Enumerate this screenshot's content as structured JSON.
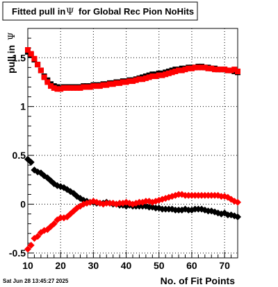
{
  "chart_data": {
    "type": "scatter",
    "title_prefix": "Fitted pull in",
    "title_symbol": "Ψ",
    "title_suffix": "for Global Rec Pion NoHits",
    "xlabel": "No. of Fit Points",
    "ylabel_prefix": "pull in",
    "ylabel_symbol": "Ψ",
    "timestamp": "Sat Jun 28 13:45:27 2025",
    "xlim": [
      10,
      74
    ],
    "ylim": [
      -0.55,
      1.8
    ],
    "grid": true,
    "x_ticks": [
      10,
      20,
      30,
      40,
      50,
      60,
      70
    ],
    "x_tick_labels": [
      "10",
      "20",
      "30",
      "40",
      "50",
      "60",
      "70"
    ],
    "y_ticks": [
      -0.5,
      0,
      0.5,
      1,
      1.5
    ],
    "y_tick_labels": [
      "-0.5",
      "0",
      "0.5",
      "1",
      "1.5"
    ],
    "series": [
      {
        "color": "#000000",
        "marker": "square",
        "role": "upper",
        "x": [
          10,
          11,
          12,
          13,
          14,
          15,
          16,
          17,
          18,
          19,
          20,
          21,
          22,
          23,
          24,
          25,
          26,
          27,
          28,
          29,
          30,
          31,
          32,
          33,
          34,
          35,
          36,
          37,
          38,
          39,
          40,
          41,
          42,
          43,
          44,
          45,
          46,
          47,
          48,
          49,
          50,
          51,
          52,
          53,
          54,
          55,
          56,
          57,
          58,
          59,
          60,
          61,
          62,
          63,
          64,
          65,
          66,
          67,
          68,
          69,
          70,
          71,
          72,
          73,
          74
        ],
        "y": [
          1.56,
          1.53,
          1.48,
          1.43,
          1.37,
          1.31,
          1.27,
          1.23,
          1.21,
          1.2,
          1.19,
          1.2,
          1.2,
          1.2,
          1.2,
          1.2,
          1.2,
          1.21,
          1.21,
          1.21,
          1.22,
          1.22,
          1.22,
          1.23,
          1.23,
          1.24,
          1.24,
          1.25,
          1.25,
          1.26,
          1.26,
          1.27,
          1.27,
          1.28,
          1.29,
          1.3,
          1.31,
          1.32,
          1.33,
          1.33,
          1.34,
          1.34,
          1.35,
          1.36,
          1.37,
          1.38,
          1.38,
          1.39,
          1.39,
          1.4,
          1.4,
          1.4,
          1.41,
          1.41,
          1.4,
          1.4,
          1.39,
          1.39,
          1.38,
          1.38,
          1.38,
          1.37,
          1.37,
          1.36,
          1.35
        ]
      },
      {
        "color": "#ff0000",
        "marker": "square",
        "role": "upper",
        "x": [
          10,
          11,
          12,
          13,
          14,
          15,
          16,
          17,
          18,
          19,
          20,
          21,
          22,
          23,
          24,
          25,
          26,
          27,
          28,
          29,
          30,
          31,
          32,
          33,
          34,
          35,
          36,
          37,
          38,
          39,
          40,
          41,
          42,
          43,
          44,
          45,
          46,
          47,
          48,
          49,
          50,
          51,
          52,
          53,
          54,
          55,
          56,
          57,
          58,
          59,
          60,
          61,
          62,
          63,
          64,
          65,
          66,
          67,
          68,
          69,
          70,
          71,
          72,
          73,
          74
        ],
        "y": [
          1.58,
          1.54,
          1.49,
          1.43,
          1.37,
          1.3,
          1.25,
          1.21,
          1.19,
          1.18,
          1.18,
          1.19,
          1.19,
          1.19,
          1.19,
          1.19,
          1.19,
          1.2,
          1.2,
          1.2,
          1.21,
          1.21,
          1.21,
          1.22,
          1.22,
          1.23,
          1.23,
          1.24,
          1.24,
          1.25,
          1.25,
          1.26,
          1.26,
          1.27,
          1.28,
          1.28,
          1.29,
          1.3,
          1.31,
          1.31,
          1.32,
          1.32,
          1.33,
          1.34,
          1.35,
          1.36,
          1.37,
          1.37,
          1.38,
          1.39,
          1.39,
          1.4,
          1.4,
          1.4,
          1.4,
          1.39,
          1.39,
          1.38,
          1.38,
          1.38,
          1.38,
          1.37,
          1.37,
          1.38,
          1.36
        ]
      },
      {
        "color": "#000000",
        "marker": "diamond",
        "role": "lower",
        "x": [
          10,
          11,
          12,
          13,
          14,
          15,
          16,
          17,
          18,
          19,
          20,
          21,
          22,
          23,
          24,
          25,
          26,
          27,
          28,
          29,
          30,
          31,
          32,
          33,
          34,
          35,
          36,
          37,
          38,
          39,
          40,
          41,
          42,
          43,
          44,
          45,
          46,
          47,
          48,
          49,
          50,
          51,
          52,
          53,
          54,
          55,
          56,
          57,
          58,
          59,
          60,
          61,
          62,
          63,
          64,
          65,
          66,
          67,
          68,
          69,
          70,
          71,
          72,
          73,
          74
        ],
        "y": [
          0.46,
          0.43,
          0.35,
          0.33,
          0.32,
          0.29,
          0.27,
          0.24,
          0.21,
          0.19,
          0.18,
          0.17,
          0.15,
          0.13,
          0.11,
          0.08,
          0.06,
          0.04,
          0.03,
          0.02,
          0.02,
          0.01,
          0.01,
          0.01,
          0.02,
          0.01,
          0.0,
          0.0,
          -0.01,
          -0.01,
          -0.02,
          -0.01,
          -0.02,
          -0.02,
          -0.02,
          -0.02,
          -0.02,
          -0.03,
          -0.03,
          -0.04,
          -0.04,
          -0.05,
          -0.05,
          -0.05,
          -0.05,
          -0.06,
          -0.06,
          -0.06,
          -0.05,
          -0.06,
          -0.06,
          -0.05,
          -0.05,
          -0.05,
          -0.06,
          -0.07,
          -0.07,
          -0.08,
          -0.09,
          -0.1,
          -0.09,
          -0.11,
          -0.11,
          -0.12,
          -0.13
        ]
      },
      {
        "color": "#ff0000",
        "marker": "diamond",
        "role": "lower",
        "x": [
          10,
          11,
          12,
          13,
          14,
          15,
          16,
          17,
          18,
          19,
          20,
          21,
          22,
          23,
          24,
          25,
          26,
          27,
          28,
          29,
          30,
          31,
          32,
          33,
          34,
          35,
          36,
          37,
          38,
          39,
          40,
          41,
          42,
          43,
          44,
          45,
          46,
          47,
          48,
          49,
          50,
          51,
          52,
          53,
          54,
          55,
          56,
          57,
          58,
          59,
          60,
          61,
          62,
          63,
          64,
          65,
          66,
          67,
          68,
          69,
          70,
          71,
          72,
          73,
          74
        ],
        "y": [
          -0.46,
          -0.42,
          -0.35,
          -0.33,
          -0.29,
          -0.27,
          -0.26,
          -0.23,
          -0.2,
          -0.16,
          -0.14,
          -0.14,
          -0.13,
          -0.1,
          -0.07,
          -0.04,
          -0.02,
          0.0,
          0.01,
          0.02,
          0.03,
          0.02,
          0.01,
          0.0,
          0.01,
          0.01,
          0.01,
          0.0,
          0.01,
          0.01,
          0.02,
          0.01,
          0.0,
          0.01,
          0.02,
          0.02,
          0.03,
          0.03,
          0.02,
          0.03,
          0.04,
          0.05,
          0.06,
          0.07,
          0.08,
          0.09,
          0.1,
          0.1,
          0.09,
          0.09,
          0.09,
          0.09,
          0.09,
          0.09,
          0.09,
          0.09,
          0.09,
          0.09,
          0.09,
          0.08,
          0.08,
          0.07,
          0.05,
          0.03,
          0.02
        ]
      }
    ]
  }
}
